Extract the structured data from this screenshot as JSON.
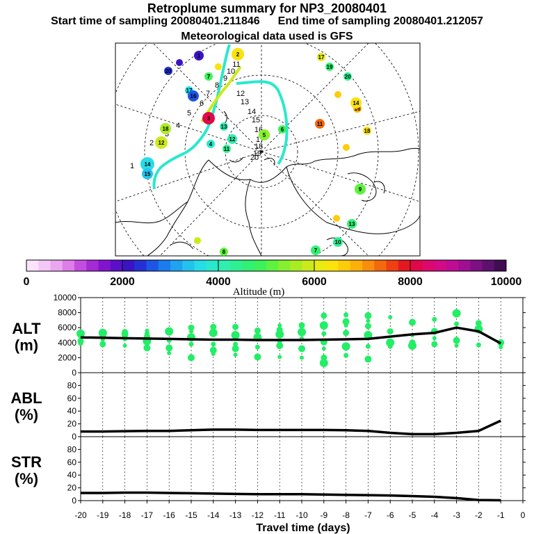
{
  "header": {
    "title": "Retroplume summary for NP3_20080401",
    "start_label": "Start time of sampling 20080401.211846",
    "end_label": "End time of sampling 20080401.212057",
    "met_label": "Meteorological data used is GFS"
  },
  "colorbar": {
    "tick_labels": [
      "0",
      "2000",
      "4000",
      "6000",
      "8000",
      "10000"
    ],
    "title": "Altitude (m)",
    "colors": [
      "#fbe3fb",
      "#f4c8f6",
      "#eaa6f1",
      "#dd7ee9",
      "#c44de0",
      "#a42ad6",
      "#8214d0",
      "#5a10c9",
      "#3a14c4",
      "#2430d6",
      "#1c56e6",
      "#1a7cee",
      "#1fa2f0",
      "#22c2ee",
      "#26dce6",
      "#2ae8cc",
      "#30eeb0",
      "#2ef092",
      "#32f074",
      "#3cf25a",
      "#5ef23e",
      "#86f02e",
      "#aaec22",
      "#ccea1a",
      "#e8ea12",
      "#fbe20c",
      "#fdcc0a",
      "#fdb00a",
      "#f98e0c",
      "#f4680e",
      "#ee4012",
      "#e41820",
      "#e00848",
      "#de086c",
      "#d20a86",
      "#c00c94",
      "#a00e92",
      "#7e1084",
      "#5e106e",
      "#400c52"
    ]
  },
  "map": {
    "track_labels": [
      "1",
      "2",
      "3",
      "4",
      "5",
      "6",
      "7",
      "8",
      "9",
      "10",
      "11",
      "12",
      "13",
      "14",
      "15",
      "16",
      "17",
      "18",
      "19",
      "20"
    ],
    "plume_numbers": [
      "17",
      "16",
      "19",
      "20",
      "18",
      "12",
      "14",
      "15",
      "11",
      "13",
      "10",
      "9",
      "8",
      "7",
      "6",
      "5",
      "4",
      "3",
      "2",
      "1"
    ]
  },
  "chart_data": [
    {
      "type": "line",
      "panel": "ALT",
      "ylabel_line1": "ALT",
      "ylabel_line2": "(m)",
      "x": [
        -20,
        -19,
        -18,
        -17,
        -16,
        -15,
        -14,
        -13,
        -12,
        -11,
        -10,
        -9,
        -8,
        -7,
        -6,
        -5,
        -4,
        -3,
        -2,
        -1
      ],
      "values": [
        4700,
        4650,
        4600,
        4550,
        4500,
        4450,
        4400,
        4400,
        4350,
        4350,
        4350,
        4400,
        4450,
        4500,
        4800,
        5100,
        5300,
        6000,
        5500,
        3900
      ],
      "ylim": [
        0,
        10000
      ],
      "yticks": [
        "0",
        "2000",
        "4000",
        "6000",
        "8000",
        "10000"
      ],
      "scatter_color": "#22ee66",
      "scatter_points": [
        [
          -20,
          4700
        ],
        [
          -20,
          4200
        ],
        [
          -20,
          5200
        ],
        [
          -20,
          3900
        ],
        [
          -19,
          4900
        ],
        [
          -19,
          4400
        ],
        [
          -19,
          3800
        ],
        [
          -19,
          5300
        ],
        [
          -18,
          4500
        ],
        [
          -18,
          5100
        ],
        [
          -18,
          3600
        ],
        [
          -18,
          5400
        ],
        [
          -17,
          4200
        ],
        [
          -17,
          5200
        ],
        [
          -17,
          3300
        ],
        [
          -17,
          5600
        ],
        [
          -17,
          4800
        ],
        [
          -16,
          5500
        ],
        [
          -16,
          4300
        ],
        [
          -16,
          3300
        ],
        [
          -16,
          2600
        ],
        [
          -15,
          6000
        ],
        [
          -15,
          4700
        ],
        [
          -15,
          3800
        ],
        [
          -15,
          2000
        ],
        [
          -15,
          5500
        ],
        [
          -14,
          6100
        ],
        [
          -14,
          5300
        ],
        [
          -14,
          3800
        ],
        [
          -14,
          3000
        ],
        [
          -14,
          2500
        ],
        [
          -13,
          6100
        ],
        [
          -13,
          5000
        ],
        [
          -13,
          3800
        ],
        [
          -13,
          3200
        ],
        [
          -13,
          2400
        ],
        [
          -12,
          5600
        ],
        [
          -12,
          4700
        ],
        [
          -12,
          3400
        ],
        [
          -12,
          2100
        ],
        [
          -11,
          6300
        ],
        [
          -11,
          5700
        ],
        [
          -11,
          5100
        ],
        [
          -11,
          4200
        ],
        [
          -11,
          3600
        ],
        [
          -11,
          2100
        ],
        [
          -10,
          6300
        ],
        [
          -10,
          5400
        ],
        [
          -10,
          4500
        ],
        [
          -10,
          3200
        ],
        [
          -10,
          2000
        ],
        [
          -9,
          7600
        ],
        [
          -9,
          6300
        ],
        [
          -9,
          5200
        ],
        [
          -9,
          4100
        ],
        [
          -9,
          3200
        ],
        [
          -9,
          2000
        ],
        [
          -9,
          1300
        ],
        [
          -8,
          7700
        ],
        [
          -8,
          6800
        ],
        [
          -8,
          6300
        ],
        [
          -8,
          5300
        ],
        [
          -8,
          3500
        ],
        [
          -8,
          2300
        ],
        [
          -7,
          7600
        ],
        [
          -7,
          6900
        ],
        [
          -7,
          6200
        ],
        [
          -7,
          5000
        ],
        [
          -7,
          3500
        ],
        [
          -7,
          1800
        ],
        [
          -6,
          7400
        ],
        [
          -6,
          5500
        ],
        [
          -6,
          4000
        ],
        [
          -6,
          3500
        ],
        [
          -5,
          6700
        ],
        [
          -5,
          5000
        ],
        [
          -5,
          4000
        ],
        [
          -5,
          3600
        ],
        [
          -4,
          7100
        ],
        [
          -4,
          5500
        ],
        [
          -4,
          4600
        ],
        [
          -4,
          3800
        ],
        [
          -3,
          7900
        ],
        [
          -3,
          6500
        ],
        [
          -3,
          4300
        ],
        [
          -3,
          3600
        ],
        [
          -2,
          6600
        ],
        [
          -2,
          5800
        ],
        [
          -2,
          3700
        ],
        [
          -1,
          4000
        ],
        [
          -1,
          3400
        ]
      ]
    },
    {
      "type": "line",
      "panel": "ABL",
      "ylabel_line1": "ABL",
      "ylabel_line2": "(%)",
      "x": [
        -20,
        -19,
        -18,
        -17,
        -16,
        -15,
        -14,
        -13,
        -12,
        -11,
        -10,
        -9,
        -8,
        -7,
        -6,
        -5,
        -4,
        -3,
        -2,
        -1
      ],
      "values": [
        8,
        8,
        8.5,
        9,
        9,
        10,
        11,
        11,
        10.5,
        10.5,
        10.5,
        10.5,
        10,
        9,
        6,
        4,
        4,
        6,
        9,
        25
      ],
      "ylim": [
        0,
        100
      ],
      "yticks": [
        "0",
        "20",
        "40",
        "60",
        "80"
      ]
    },
    {
      "type": "line",
      "panel": "STR",
      "ylabel_line1": "STR",
      "ylabel_line2": "(%)",
      "x": [
        -20,
        -19,
        -18,
        -17,
        -16,
        -15,
        -14,
        -13,
        -12,
        -11,
        -10,
        -9,
        -8,
        -7,
        -6,
        -5,
        -4,
        -3,
        -2,
        -1
      ],
      "values": [
        12,
        12,
        12.5,
        12.5,
        12,
        11.5,
        11,
        10.5,
        10,
        10,
        10,
        9.5,
        9,
        8.5,
        8,
        7,
        6,
        4,
        1,
        0.5
      ],
      "ylim": [
        0,
        100
      ],
      "yticks": [
        "0",
        "20",
        "40",
        "60",
        "80"
      ],
      "xlabel": "Travel time (days)",
      "xticks": [
        "-20",
        "-19",
        "-18",
        "-17",
        "-16",
        "-15",
        "-14",
        "-13",
        "-12",
        "-11",
        "-10",
        "-9",
        "-8",
        "-7",
        "-6",
        "-5",
        "-4",
        "-3",
        "-2",
        "-1",
        "0"
      ]
    }
  ]
}
